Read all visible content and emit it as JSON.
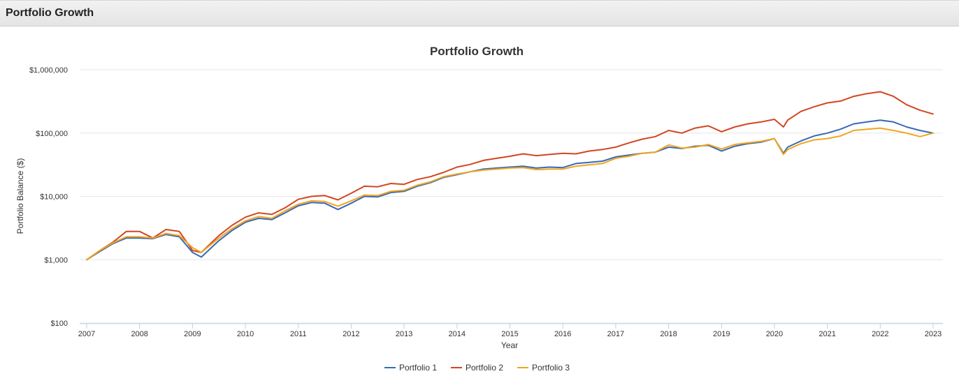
{
  "panel": {
    "title": "Portfolio Growth"
  },
  "chart_data": {
    "type": "line",
    "title": "Portfolio Growth",
    "xlabel": "Year",
    "ylabel": "Portfolio Balance ($)",
    "y_scale": "log",
    "ylim": [
      100,
      1000000
    ],
    "xlim": [
      2007,
      2023
    ],
    "grid": true,
    "legend_position": "bottom",
    "x_ticks": [
      "2007",
      "2008",
      "2009",
      "2010",
      "2011",
      "2012",
      "2013",
      "2014",
      "2015",
      "2016",
      "2017",
      "2018",
      "2019",
      "2020",
      "2021",
      "2022",
      "2023"
    ],
    "y_ticks": [
      {
        "value": 100,
        "label": "$100"
      },
      {
        "value": 1000,
        "label": "$1,000"
      },
      {
        "value": 10000,
        "label": "$10,000"
      },
      {
        "value": 100000,
        "label": "$100,000"
      },
      {
        "value": 1000000,
        "label": "$1,000,000"
      }
    ],
    "x": [
      2007.0,
      2007.25,
      2007.5,
      2007.75,
      2008.0,
      2008.25,
      2008.5,
      2008.75,
      2009.0,
      2009.167,
      2009.5,
      2009.75,
      2010.0,
      2010.25,
      2010.5,
      2010.75,
      2011.0,
      2011.25,
      2011.5,
      2011.75,
      2012.0,
      2012.25,
      2012.5,
      2012.75,
      2013.0,
      2013.25,
      2013.5,
      2013.75,
      2014.0,
      2014.25,
      2014.5,
      2014.75,
      2015.0,
      2015.25,
      2015.5,
      2015.75,
      2016.0,
      2016.25,
      2016.5,
      2016.75,
      2017.0,
      2017.25,
      2017.5,
      2017.75,
      2018.0,
      2018.25,
      2018.5,
      2018.75,
      2019.0,
      2019.25,
      2019.5,
      2019.75,
      2020.0,
      2020.17,
      2020.25,
      2020.5,
      2020.75,
      2021.0,
      2021.25,
      2021.5,
      2021.75,
      2022.0,
      2022.25,
      2022.5,
      2022.75,
      2023.0
    ],
    "series": [
      {
        "name": "Portfolio 1",
        "color": "#3869b5",
        "values": [
          1000,
          1350,
          1800,
          2200,
          2200,
          2150,
          2500,
          2300,
          1300,
          1100,
          2000,
          2900,
          3900,
          4500,
          4300,
          5500,
          7100,
          8000,
          7800,
          6200,
          7800,
          10000,
          9800,
          11500,
          12000,
          14500,
          16500,
          20000,
          22000,
          24500,
          27000,
          28000,
          29000,
          30000,
          28000,
          29000,
          28500,
          33000,
          34500,
          36000,
          42000,
          45000,
          48000,
          50000,
          60000,
          57000,
          62000,
          64000,
          52000,
          62000,
          68000,
          72000,
          82000,
          48000,
          60000,
          75000,
          90000,
          100000,
          115000,
          140000,
          150000,
          160000,
          150000,
          125000,
          110000,
          100000
        ]
      },
      {
        "name": "Portfolio 2",
        "color": "#d24621",
        "values": [
          1000,
          1400,
          1900,
          2800,
          2800,
          2200,
          3000,
          2800,
          1400,
          1300,
          2400,
          3500,
          4700,
          5500,
          5200,
          6600,
          9000,
          10000,
          10300,
          8800,
          11200,
          14500,
          14200,
          16000,
          15500,
          18500,
          20500,
          24000,
          29000,
          32000,
          37000,
          40000,
          43000,
          47000,
          44000,
          46000,
          48000,
          47000,
          52000,
          55000,
          60000,
          70000,
          80000,
          88000,
          110000,
          100000,
          120000,
          130000,
          105000,
          125000,
          140000,
          150000,
          165000,
          125000,
          160000,
          220000,
          260000,
          300000,
          320000,
          380000,
          420000,
          450000,
          380000,
          280000,
          230000,
          200000
        ]
      },
      {
        "name": "Portfolio 3",
        "color": "#f0a51f",
        "values": [
          1000,
          1400,
          1850,
          2300,
          2300,
          2200,
          2600,
          2400,
          1550,
          1300,
          2200,
          3100,
          4100,
          4800,
          4500,
          5900,
          7500,
          8500,
          8300,
          7000,
          8500,
          10500,
          10300,
          12000,
          12500,
          15000,
          17000,
          20500,
          22500,
          24500,
          26000,
          27000,
          28000,
          28500,
          26500,
          27000,
          27000,
          30000,
          31500,
          33000,
          40000,
          43000,
          48000,
          50000,
          65000,
          58000,
          60000,
          66000,
          56000,
          66000,
          70000,
          74000,
          82000,
          46000,
          55000,
          68000,
          78000,
          82000,
          90000,
          110000,
          115000,
          120000,
          110000,
          100000,
          88000,
          100000
        ]
      }
    ]
  }
}
